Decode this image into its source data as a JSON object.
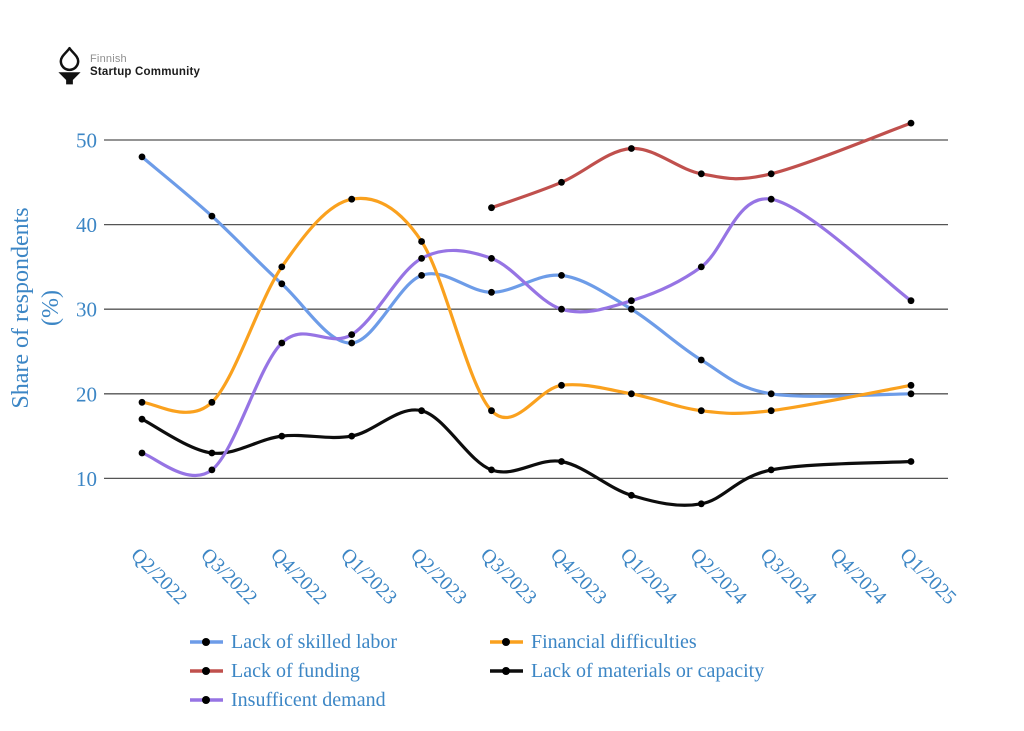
{
  "logo": {
    "brand_top": "Finnish",
    "brand_bottom": "Startup Community",
    "icon": "torch-icon",
    "icon_color": "#111111"
  },
  "chart_data": {
    "type": "line",
    "title": "",
    "ylabel_line1": "Share of respondents",
    "ylabel_line2": "(%)",
    "xlabel": "",
    "categories": [
      "Q2/2022",
      "Q3/2022",
      "Q4/2022",
      "Q1/2023",
      "Q2/2023",
      "Q3/2023",
      "Q4/2023",
      "Q1/2024",
      "Q2/2024",
      "Q3/2024",
      "Q4/2024",
      "Q1/2025"
    ],
    "series": [
      {
        "name": "Lack of skilled labor",
        "color": "#6d9ce8",
        "values": [
          48,
          41,
          33,
          26,
          34,
          32,
          34,
          30,
          24,
          20,
          null,
          20
        ]
      },
      {
        "name": "Financial difficulties",
        "color": "#faa11e",
        "values": [
          19,
          19,
          35,
          43,
          38,
          18,
          21,
          20,
          18,
          18,
          null,
          21
        ]
      },
      {
        "name": "Lack of funding",
        "color": "#c0504d",
        "values": [
          null,
          null,
          null,
          null,
          null,
          42,
          45,
          49,
          46,
          46,
          null,
          52
        ]
      },
      {
        "name": "Lack of materials or capacity",
        "color": "#0d0d0d",
        "values": [
          17,
          13,
          15,
          15,
          18,
          11,
          12,
          8,
          7,
          11,
          null,
          12
        ]
      },
      {
        "name": "Insufficent demand",
        "color": "#9674e4",
        "values": [
          13,
          11,
          26,
          27,
          36,
          36,
          30,
          31,
          35,
          43,
          null,
          31
        ]
      }
    ],
    "y_ticks": [
      50,
      40,
      30,
      20,
      10
    ],
    "ylim": [
      10,
      50
    ],
    "grid": "horizontal",
    "x_label_rotation": 45,
    "legend_position": "bottom",
    "legend_columns": 2,
    "marker_color": "#000000",
    "axis_text_color": "#3c86c5",
    "grid_color": "#555555"
  }
}
